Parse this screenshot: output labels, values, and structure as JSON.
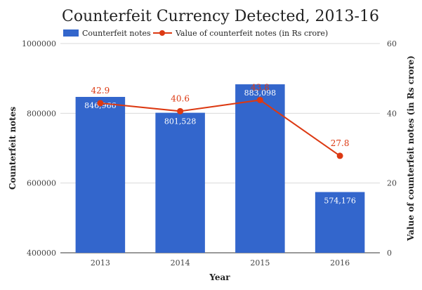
{
  "chart_data": {
    "type": "bar",
    "title": "Counterfeit Currency Detected, 2013-16",
    "xlabel": "Year",
    "ylabel": "Counterfeit notes",
    "y2label": "Value of counterfeit notes (in Rs crore)",
    "categories": [
      "2013",
      "2014",
      "2015",
      "2016"
    ],
    "ylim": [
      400000,
      1000000
    ],
    "y_ticks": [
      "400000",
      "600000",
      "800000",
      "1000000"
    ],
    "y2lim": [
      0,
      60
    ],
    "y2_ticks": [
      "0",
      "20",
      "40",
      "60"
    ],
    "grid": true,
    "legend_position": "top",
    "series": [
      {
        "name": "Counterfeit notes",
        "type": "bar",
        "axis": "left",
        "color": "#3366cc",
        "values": [
          846966,
          801528,
          883098,
          574176
        ],
        "labels": [
          "846,966",
          "801,528",
          "883,098",
          "574,176"
        ]
      },
      {
        "name": "Value of counterfeit notes (in Rs crore)",
        "type": "line",
        "axis": "right",
        "color": "#dc3912",
        "values": [
          42.9,
          40.6,
          43.8,
          27.8
        ],
        "labels": [
          "42.9",
          "40.6",
          "43.8",
          "27.8"
        ]
      }
    ]
  }
}
